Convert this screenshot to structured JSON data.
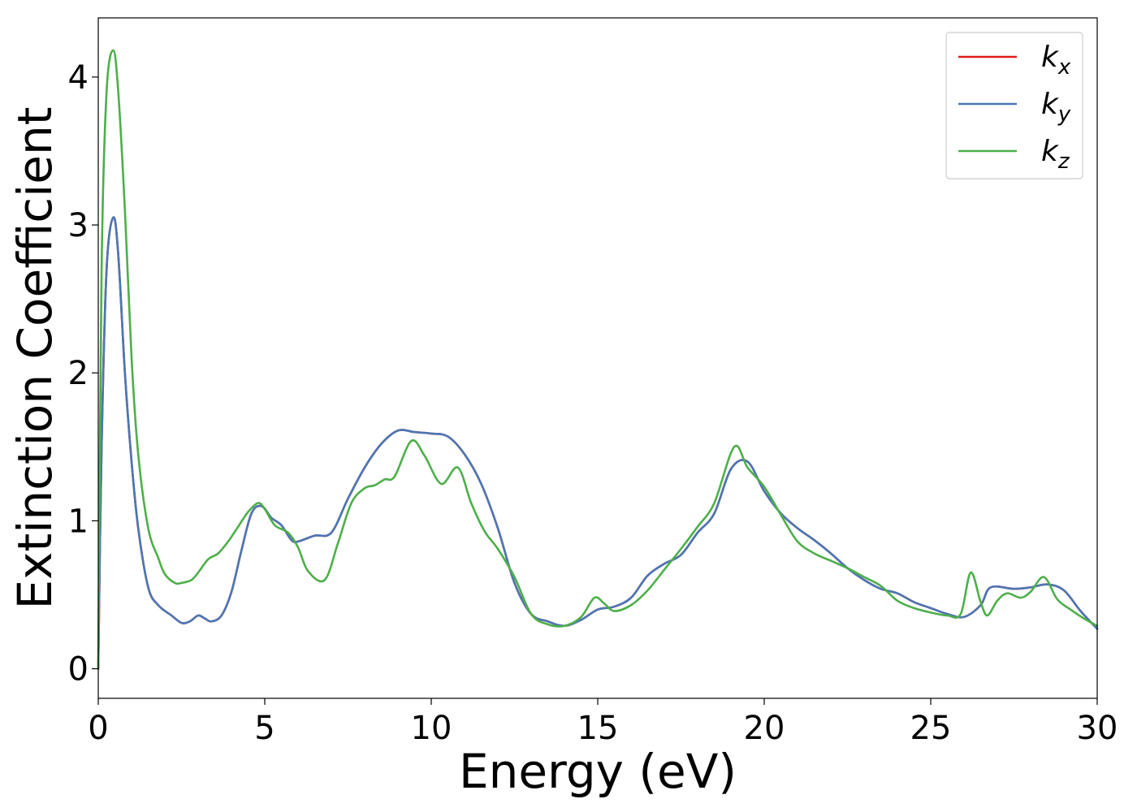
{
  "chart_data": {
    "type": "line",
    "title": "",
    "xlabel": "Energy (eV)",
    "ylabel": "Extinction Coefficient",
    "xlim": [
      0,
      30
    ],
    "ylim": [
      -0.2,
      4.4
    ],
    "xticks": [
      0,
      5,
      10,
      15,
      20,
      25,
      30
    ],
    "yticks": [
      0,
      1,
      2,
      3,
      4
    ],
    "xtick_labels": [
      "0",
      "5",
      "10",
      "15",
      "20",
      "25",
      "30"
    ],
    "ytick_labels": [
      "0",
      "1",
      "2",
      "3",
      "4"
    ],
    "grid": false,
    "legend_position": "top-right",
    "series": [
      {
        "name": "k",
        "name_subscript": "x",
        "color": "#e41a1c",
        "x": [
          0,
          0.1,
          0.25,
          0.45,
          0.6,
          0.8,
          1.0,
          1.2,
          1.5,
          1.8,
          2.2,
          2.5,
          2.75,
          3.0,
          3.2,
          3.4,
          3.7,
          4.0,
          4.3,
          4.6,
          4.9,
          5.2,
          5.5,
          5.8,
          6.0,
          6.5,
          7.0,
          7.5,
          8.0,
          8.5,
          9.0,
          9.5,
          10.0,
          10.5,
          11.0,
          11.5,
          12.0,
          12.5,
          13.0,
          13.5,
          14.0,
          14.5,
          15.0,
          15.5,
          16.0,
          16.5,
          17.0,
          17.5,
          18.0,
          18.5,
          19.0,
          19.5,
          20.0,
          20.5,
          21.0,
          21.5,
          22.0,
          22.5,
          23.0,
          23.5,
          24.0,
          24.5,
          25.0,
          25.5,
          26.0,
          26.5,
          26.8,
          27.5,
          28.0,
          28.5,
          29.0,
          29.5,
          30.0
        ],
        "y": [
          0.0,
          1.5,
          2.7,
          3.05,
          2.8,
          2.0,
          1.4,
          0.95,
          0.55,
          0.43,
          0.36,
          0.31,
          0.32,
          0.36,
          0.34,
          0.32,
          0.36,
          0.52,
          0.8,
          1.05,
          1.1,
          1.02,
          0.97,
          0.87,
          0.86,
          0.9,
          0.92,
          1.15,
          1.36,
          1.52,
          1.61,
          1.6,
          1.59,
          1.57,
          1.45,
          1.25,
          0.95,
          0.58,
          0.37,
          0.32,
          0.29,
          0.33,
          0.4,
          0.42,
          0.48,
          0.63,
          0.71,
          0.77,
          0.92,
          1.05,
          1.35,
          1.4,
          1.2,
          1.05,
          0.95,
          0.87,
          0.78,
          0.68,
          0.6,
          0.54,
          0.51,
          0.45,
          0.41,
          0.37,
          0.35,
          0.43,
          0.55,
          0.54,
          0.55,
          0.57,
          0.53,
          0.39,
          0.27
        ]
      },
      {
        "name": "k",
        "name_subscript": "y",
        "color": "#4a77b4",
        "x": [
          0,
          0.1,
          0.25,
          0.45,
          0.6,
          0.8,
          1.0,
          1.2,
          1.5,
          1.8,
          2.2,
          2.5,
          2.75,
          3.0,
          3.2,
          3.4,
          3.7,
          4.0,
          4.3,
          4.6,
          4.9,
          5.2,
          5.5,
          5.8,
          6.0,
          6.5,
          7.0,
          7.5,
          8.0,
          8.5,
          9.0,
          9.5,
          10.0,
          10.5,
          11.0,
          11.5,
          12.0,
          12.5,
          13.0,
          13.5,
          14.0,
          14.5,
          15.0,
          15.5,
          16.0,
          16.5,
          17.0,
          17.5,
          18.0,
          18.5,
          19.0,
          19.5,
          20.0,
          20.5,
          21.0,
          21.5,
          22.0,
          22.5,
          23.0,
          23.5,
          24.0,
          24.5,
          25.0,
          25.5,
          26.0,
          26.5,
          26.8,
          27.5,
          28.0,
          28.5,
          29.0,
          29.5,
          30.0
        ],
        "y": [
          0.0,
          1.5,
          2.7,
          3.05,
          2.8,
          2.0,
          1.4,
          0.95,
          0.55,
          0.43,
          0.36,
          0.31,
          0.32,
          0.36,
          0.34,
          0.32,
          0.36,
          0.52,
          0.8,
          1.05,
          1.1,
          1.02,
          0.97,
          0.87,
          0.86,
          0.9,
          0.92,
          1.15,
          1.36,
          1.52,
          1.61,
          1.6,
          1.59,
          1.57,
          1.45,
          1.25,
          0.95,
          0.58,
          0.37,
          0.32,
          0.29,
          0.33,
          0.4,
          0.42,
          0.48,
          0.63,
          0.71,
          0.77,
          0.92,
          1.05,
          1.35,
          1.4,
          1.2,
          1.05,
          0.95,
          0.87,
          0.78,
          0.68,
          0.6,
          0.54,
          0.51,
          0.45,
          0.41,
          0.37,
          0.35,
          0.43,
          0.55,
          0.54,
          0.55,
          0.57,
          0.53,
          0.39,
          0.27
        ]
      },
      {
        "name": "k",
        "name_subscript": "z",
        "color": "#4daf4a",
        "x": [
          0,
          0.1,
          0.25,
          0.45,
          0.6,
          0.8,
          1.0,
          1.2,
          1.5,
          1.8,
          2.0,
          2.3,
          2.5,
          2.8,
          3.0,
          3.3,
          3.6,
          3.9,
          4.2,
          4.5,
          4.8,
          5.0,
          5.3,
          5.7,
          6.0,
          6.3,
          6.8,
          7.2,
          7.6,
          8.0,
          8.3,
          8.6,
          8.9,
          9.4,
          9.8,
          10.3,
          10.8,
          11.2,
          11.6,
          12.0,
          12.5,
          13.0,
          13.5,
          14.0,
          14.5,
          14.9,
          15.2,
          15.5,
          16.0,
          16.5,
          17.0,
          17.5,
          18.0,
          18.5,
          19.1,
          19.5,
          20.0,
          20.5,
          21.0,
          21.5,
          22.0,
          22.5,
          23.0,
          23.5,
          24.0,
          24.5,
          25.0,
          25.5,
          25.9,
          26.2,
          26.5,
          26.7,
          27.0,
          27.3,
          27.7,
          28.0,
          28.4,
          28.8,
          29.2,
          29.6,
          30.0
        ],
        "y": [
          0.0,
          2.7,
          3.9,
          4.18,
          3.9,
          3.1,
          2.1,
          1.45,
          0.95,
          0.75,
          0.64,
          0.58,
          0.58,
          0.6,
          0.65,
          0.74,
          0.78,
          0.86,
          0.96,
          1.06,
          1.12,
          1.08,
          0.97,
          0.92,
          0.82,
          0.66,
          0.6,
          0.85,
          1.12,
          1.22,
          1.24,
          1.28,
          1.3,
          1.54,
          1.44,
          1.25,
          1.36,
          1.12,
          0.93,
          0.81,
          0.62,
          0.37,
          0.3,
          0.29,
          0.35,
          0.48,
          0.44,
          0.39,
          0.43,
          0.53,
          0.67,
          0.81,
          0.96,
          1.12,
          1.5,
          1.36,
          1.23,
          1.04,
          0.86,
          0.78,
          0.73,
          0.68,
          0.62,
          0.56,
          0.46,
          0.41,
          0.38,
          0.36,
          0.37,
          0.65,
          0.45,
          0.36,
          0.46,
          0.51,
          0.48,
          0.52,
          0.62,
          0.47,
          0.4,
          0.34,
          0.29
        ]
      }
    ]
  }
}
